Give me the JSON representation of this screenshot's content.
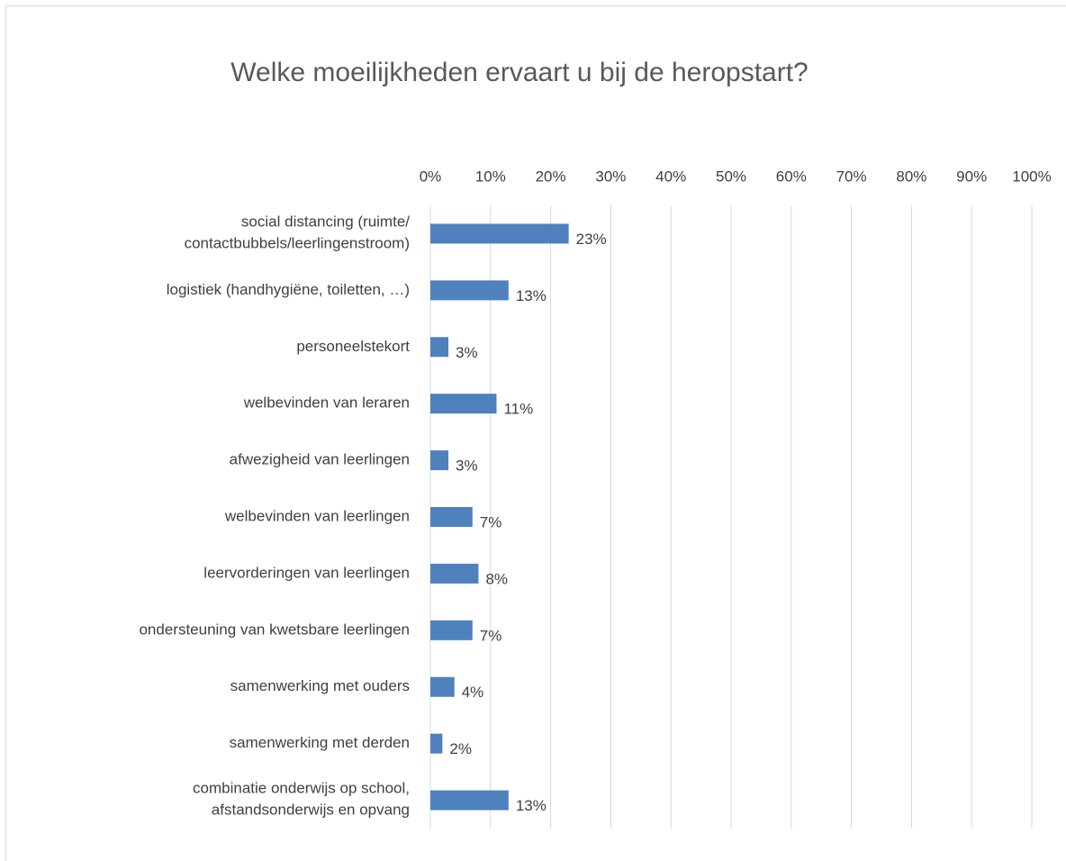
{
  "chart_data": {
    "type": "bar",
    "orientation": "horizontal",
    "title": "Welke moeilijkheden ervaart u bij de heropstart?",
    "categories": [
      "social distancing (ruimte/\ncontactbubbels/leerlingenstroom)",
      "logistiek (handhygiëne, toiletten, …)",
      "personeelstekort",
      "welbevinden van leraren",
      "afwezigheid van leerlingen",
      "welbevinden van leerlingen",
      "leervorderingen van leerlingen",
      "ondersteuning van kwetsbare leerlingen",
      "samenwerking met ouders",
      "samenwerking met derden",
      "combinatie onderwijs op school,\nafstandsonderwijs en opvang"
    ],
    "values": [
      23,
      13,
      3,
      11,
      3,
      7,
      8,
      7,
      4,
      2,
      13
    ],
    "value_labels": [
      "23%",
      "13%",
      "3%",
      "11%",
      "3%",
      "7%",
      "8%",
      "7%",
      "4%",
      "2%",
      "13%"
    ],
    "color": "#4f81bd",
    "xlim": [
      0,
      100
    ],
    "xticks": [
      {
        "value": 0,
        "label": "0%"
      },
      {
        "value": 10,
        "label": "10%"
      },
      {
        "value": 20,
        "label": "20%"
      },
      {
        "value": 30,
        "label": "30%"
      },
      {
        "value": 40,
        "label": "40%"
      },
      {
        "value": 50,
        "label": "50%"
      },
      {
        "value": 60,
        "label": "60%"
      },
      {
        "value": 70,
        "label": "70%"
      },
      {
        "value": 80,
        "label": "80%"
      },
      {
        "value": 90,
        "label": "90%"
      },
      {
        "value": 100,
        "label": "100%"
      }
    ],
    "grid": true
  }
}
